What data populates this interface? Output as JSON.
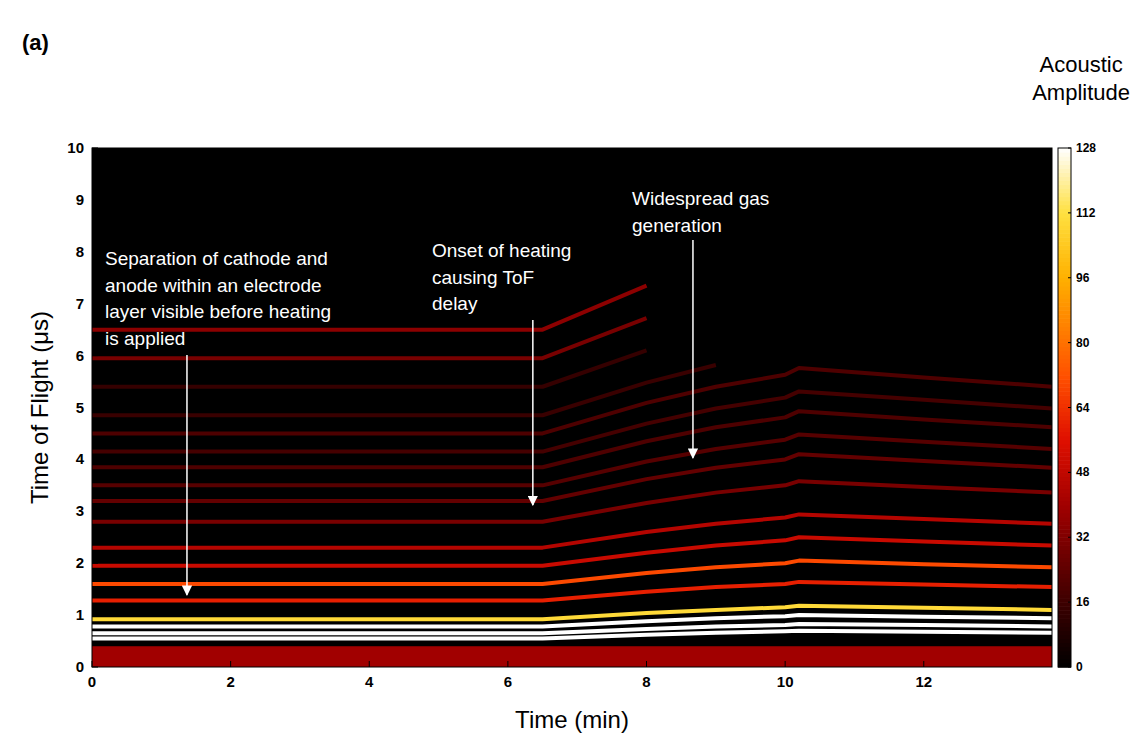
{
  "chart_data": {
    "type": "heatmap",
    "panel_label": "(a)",
    "x_label": "Time (min)",
    "y_label": "Time of Flight (μs)",
    "colorbar_label": "Acoustic Amplitude",
    "xlim": [
      0,
      13.85
    ],
    "xticks": [
      0,
      2,
      4,
      6,
      8,
      10,
      12
    ],
    "ylim": [
      0,
      10
    ],
    "yticks": [
      0,
      1,
      2,
      3,
      4,
      5,
      6,
      7,
      8,
      9,
      10
    ],
    "colorbar_range": [
      0,
      128
    ],
    "colorbar_ticks": [
      0,
      16,
      32,
      48,
      64,
      80,
      96,
      112,
      128
    ],
    "regions": [
      {
        "y0": 0,
        "y1": 0.4,
        "amplitude": 40
      }
    ],
    "x": [
      0,
      6.5,
      8,
      9,
      10,
      10.2,
      12,
      13.85
    ],
    "series": [
      {
        "amplitude": 128,
        "values": [
          0.55,
          0.55,
          0.62,
          0.66,
          0.69,
          0.7,
          0.68,
          0.66
        ]
      },
      {
        "amplitude": 128,
        "values": [
          0.65,
          0.65,
          0.73,
          0.78,
          0.81,
          0.83,
          0.81,
          0.78
        ]
      },
      {
        "amplitude": 128,
        "values": [
          0.78,
          0.78,
          0.88,
          0.94,
          0.98,
          1.0,
          0.97,
          0.94
        ]
      },
      {
        "amplitude": 110,
        "values": [
          0.92,
          0.92,
          1.04,
          1.1,
          1.15,
          1.18,
          1.14,
          1.1
        ]
      },
      {
        "amplitude": 60,
        "values": [
          1.28,
          1.28,
          1.45,
          1.54,
          1.6,
          1.64,
          1.59,
          1.54
        ]
      },
      {
        "amplitude": 70,
        "values": [
          1.6,
          1.6,
          1.81,
          1.92,
          2.0,
          2.05,
          1.98,
          1.92
        ]
      },
      {
        "amplitude": 50,
        "values": [
          1.95,
          1.95,
          2.2,
          2.34,
          2.44,
          2.5,
          2.42,
          2.34
        ]
      },
      {
        "amplitude": 45,
        "values": [
          2.3,
          2.3,
          2.6,
          2.76,
          2.88,
          2.94,
          2.85,
          2.76
        ]
      },
      {
        "amplitude": 30,
        "values": [
          2.8,
          2.8,
          3.16,
          3.36,
          3.5,
          3.58,
          3.47,
          3.36
        ]
      },
      {
        "amplitude": 25,
        "values": [
          3.2,
          3.2,
          3.62,
          3.84,
          4.0,
          4.1,
          3.97,
          3.84
        ]
      },
      {
        "amplitude": 22,
        "values": [
          3.5,
          3.5,
          3.96,
          4.2,
          4.38,
          4.48,
          4.34,
          4.2
        ]
      },
      {
        "amplitude": 20,
        "values": [
          3.85,
          3.85,
          4.35,
          4.62,
          4.81,
          4.93,
          4.77,
          4.62
        ]
      },
      {
        "amplitude": 18,
        "values": [
          4.15,
          4.15,
          4.69,
          4.98,
          5.19,
          5.31,
          5.15,
          4.98
        ]
      },
      {
        "amplitude": 20,
        "values": [
          4.5,
          4.5,
          5.09,
          5.4,
          5.63,
          5.76,
          5.58,
          5.4
        ]
      },
      {
        "amplitude": 15,
        "values": [
          4.85,
          4.85,
          5.48,
          5.82,
          null,
          null,
          null,
          null
        ]
      },
      {
        "amplitude": 14,
        "values": [
          5.4,
          5.4,
          6.1,
          null,
          null,
          null,
          null,
          null
        ]
      },
      {
        "amplitude": 30,
        "values": [
          5.95,
          5.95,
          6.72,
          null,
          null,
          null,
          null,
          null
        ]
      },
      {
        "amplitude": 35,
        "values": [
          6.5,
          6.5,
          7.35,
          null,
          null,
          null,
          null,
          null
        ]
      }
    ],
    "annotations": [
      {
        "text": [
          "Separation of cathode and",
          "anode within an electrode",
          "layer visible before heating",
          "is applied"
        ],
        "x": 1.37,
        "y": 1.39
      },
      {
        "text": [
          "Onset of heating",
          "causing ToF",
          "delay"
        ],
        "x": 6.36,
        "y": 3.12
      },
      {
        "text": [
          "Widespread gas",
          "generation"
        ],
        "x": 8.67,
        "y": 4.03
      }
    ]
  }
}
